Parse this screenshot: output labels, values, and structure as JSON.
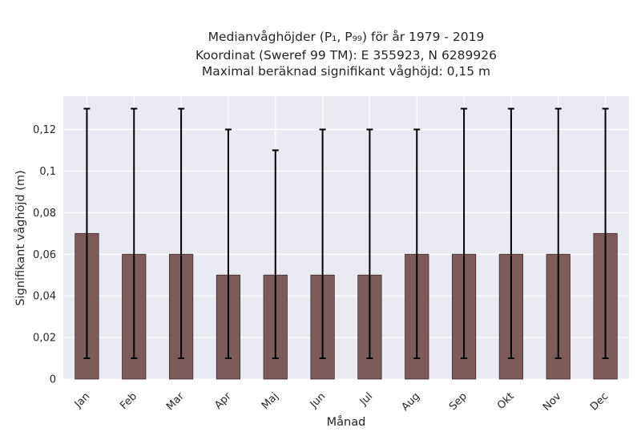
{
  "chart_data": {
    "type": "bar",
    "title_lines": [
      "Medianvåghöjder (P₁, P₉₉) för år 1979 - 2019",
      "Koordinat (Sweref 99 TM): E 355923, N 6289926",
      "Maximal beräknad signifikant våghöjd: 0,15 m"
    ],
    "xlabel": "Månad",
    "ylabel": "Signifikant våghöjd (m)",
    "categories": [
      "Jan",
      "Feb",
      "Mar",
      "Apr",
      "Maj",
      "Jun",
      "Jul",
      "Aug",
      "Sep",
      "Okt",
      "Nov",
      "Dec"
    ],
    "values": [
      0.07,
      0.06,
      0.06,
      0.05,
      0.05,
      0.05,
      0.05,
      0.06,
      0.06,
      0.06,
      0.06,
      0.07
    ],
    "error_low": [
      0.01,
      0.01,
      0.01,
      0.01,
      0.01,
      0.01,
      0.01,
      0.01,
      0.01,
      0.01,
      0.01,
      0.01
    ],
    "error_high": [
      0.13,
      0.13,
      0.13,
      0.12,
      0.11,
      0.12,
      0.12,
      0.12,
      0.13,
      0.13,
      0.13,
      0.13
    ],
    "ylim": [
      0,
      0.136
    ],
    "yticks": [
      0,
      0.02,
      0.04,
      0.06,
      0.08,
      0.1,
      0.12
    ],
    "ytick_labels": [
      "0",
      "0,02",
      "0,04",
      "0,06",
      "0,08",
      "0,1",
      "0,12"
    ],
    "grid": true,
    "colors": {
      "bar": "#7e5b5b",
      "bar_edge": "#3d2b2b",
      "error": "#000000",
      "plot_bg": "#eaeaf2",
      "grid": "#ffffff"
    }
  }
}
